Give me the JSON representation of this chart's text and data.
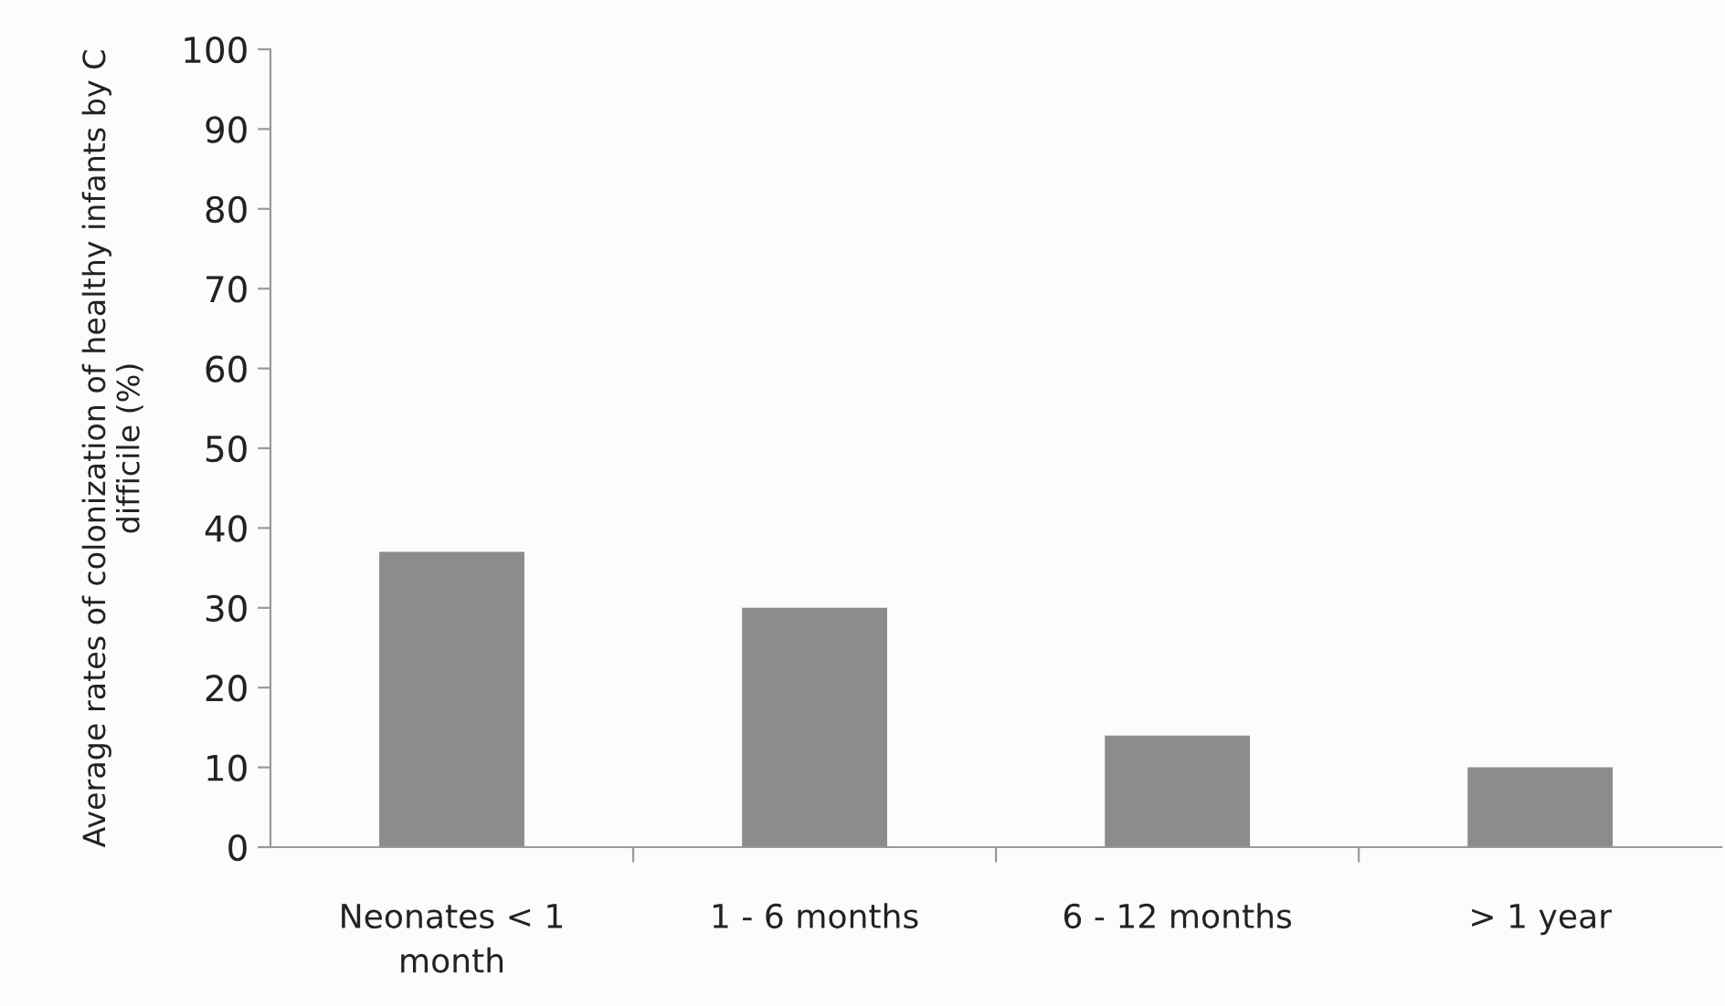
{
  "chart_data": {
    "type": "bar",
    "ylabel": "Average rates of colonization of healthy infants by C difficile (%)",
    "categories": [
      "Neonates < 1\nmonth",
      "1 - 6 months",
      "6 - 12 months",
      "> 1 year"
    ],
    "values": [
      37,
      30,
      14,
      10
    ],
    "color": "#8c8c8c",
    "ylim": [
      0,
      100
    ],
    "yticks": [
      0,
      10,
      20,
      30,
      40,
      50,
      60,
      70,
      80,
      90,
      100
    ],
    "grid": false,
    "legend": false
  }
}
